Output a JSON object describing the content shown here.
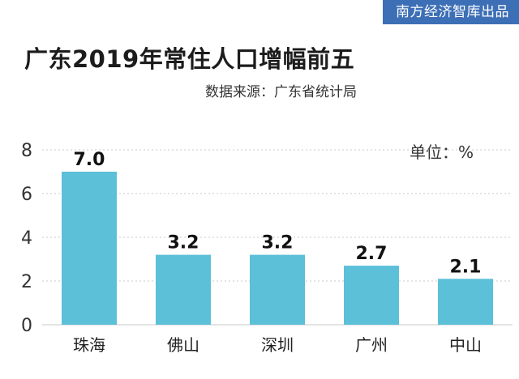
{
  "header": {
    "brand": "南方经济智库出品",
    "title": "广东2019年常住人口增幅前五",
    "source": "数据来源：广东省统计局",
    "unit": "单位：%"
  },
  "colors": {
    "bar": "#5bc0d8",
    "brand": "#3d6fb6",
    "grid": "#c8c8c8"
  },
  "chart_data": {
    "type": "bar",
    "title": "广东2019年常住人口增幅前五",
    "categories": [
      "珠海",
      "佛山",
      "深圳",
      "广州",
      "中山"
    ],
    "values": [
      7.0,
      3.2,
      3.2,
      2.7,
      2.1
    ],
    "value_labels": [
      "7.0",
      "3.2",
      "3.2",
      "2.7",
      "2.1"
    ],
    "ylim": [
      0,
      8
    ],
    "yticks": [
      0,
      2,
      4,
      6,
      8
    ],
    "grid": true,
    "ylabel": "单位：%"
  }
}
